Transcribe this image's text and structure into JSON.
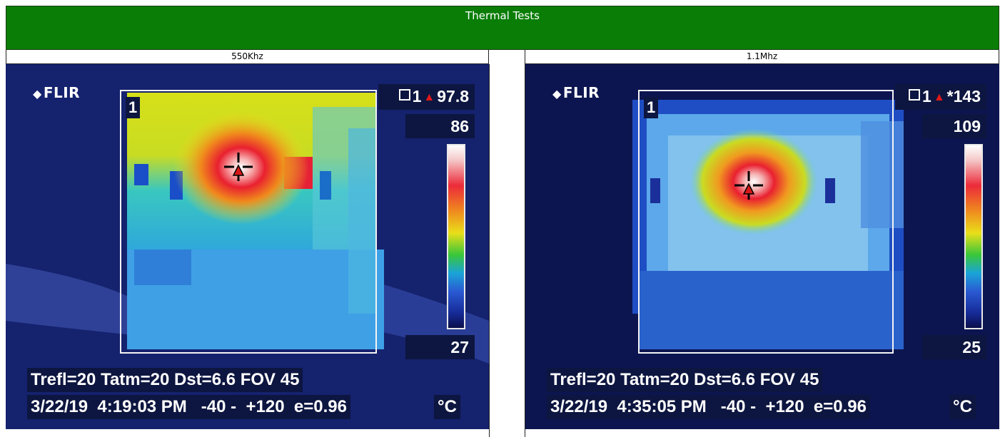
{
  "title": "Thermal Tests",
  "colors": {
    "title_bg": "#0a7d07",
    "title_text": "#ffffff"
  },
  "panels": [
    {
      "header": "550Khz",
      "logo": "FLIR",
      "roi_label": "1",
      "max_readout": "97.8",
      "roi_index": "1",
      "scale_max": "86",
      "scale_min": "27",
      "params": "Trefl=20 Tatm=20 Dst=6.6 FOV 45",
      "timestamp": "3/22/19  4:19:03 PM   -40 -  +120  e=0.96",
      "unit": "°C"
    },
    {
      "header": "1.1Mhz",
      "logo": "FLIR",
      "roi_label": "1",
      "max_readout": "*143",
      "roi_index": "1",
      "scale_max": "109",
      "scale_min": "25",
      "params": "Trefl=20 Tatm=20 Dst=6.6 FOV 45",
      "timestamp": "3/22/19  4:35:05 PM   -40 -  +120  e=0.96",
      "unit": "°C"
    }
  ]
}
